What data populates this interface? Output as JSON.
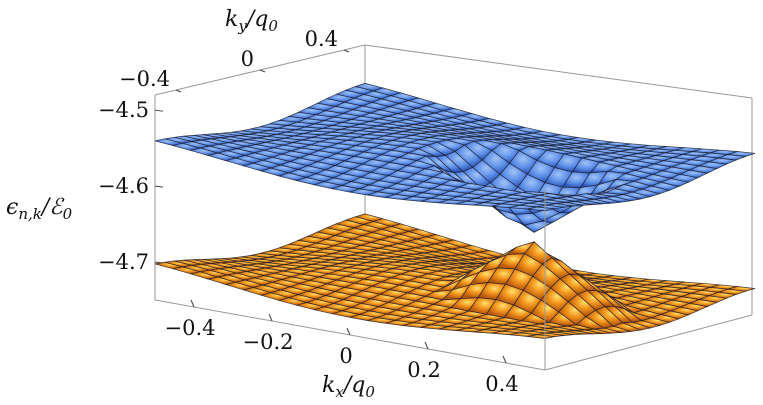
{
  "chart_data": {
    "type": "surface3d",
    "x_axis": {
      "label_main": "k",
      "label_sub": "x",
      "label_den": "/q",
      "label_den_sub": "0",
      "range": [
        -0.5,
        0.5
      ],
      "ticks": [
        "−0.4",
        "−0.2",
        "0",
        "0.2",
        "0.4"
      ],
      "tick_values": [
        -0.4,
        -0.2,
        0,
        0.2,
        0.4
      ]
    },
    "y_axis": {
      "label_main": "k",
      "label_sub": "y",
      "label_den": "/q",
      "label_den_sub": "0",
      "range": [
        -0.5,
        0.5
      ],
      "ticks": [
        "−0.4",
        "0",
        "0.4"
      ],
      "tick_values": [
        -0.4,
        0,
        0.4
      ]
    },
    "z_axis": {
      "label_text": "ϵ",
      "label_sub": "n,k",
      "label_den": "/ℰ",
      "label_den_sub": "0",
      "range": [
        -4.75,
        -4.48
      ],
      "ticks": [
        "−4.5",
        "−4.6",
        "−4.7"
      ],
      "tick_values": [
        -4.5,
        -4.6,
        -4.7
      ]
    },
    "series": [
      {
        "color_top": "#8fb6f3",
        "color_bottom": "#2a56c8",
        "band_center": -4.545,
        "cone_tip": -4.627,
        "band": "upper"
      },
      {
        "color_top": "#ffd25a",
        "color_bottom": "#c55f0d",
        "band_center": -4.715,
        "cone_tip": -4.633,
        "band": "lower"
      }
    ],
    "dirac_point": {
      "kx": 0.22,
      "ky": -0.05
    }
  }
}
